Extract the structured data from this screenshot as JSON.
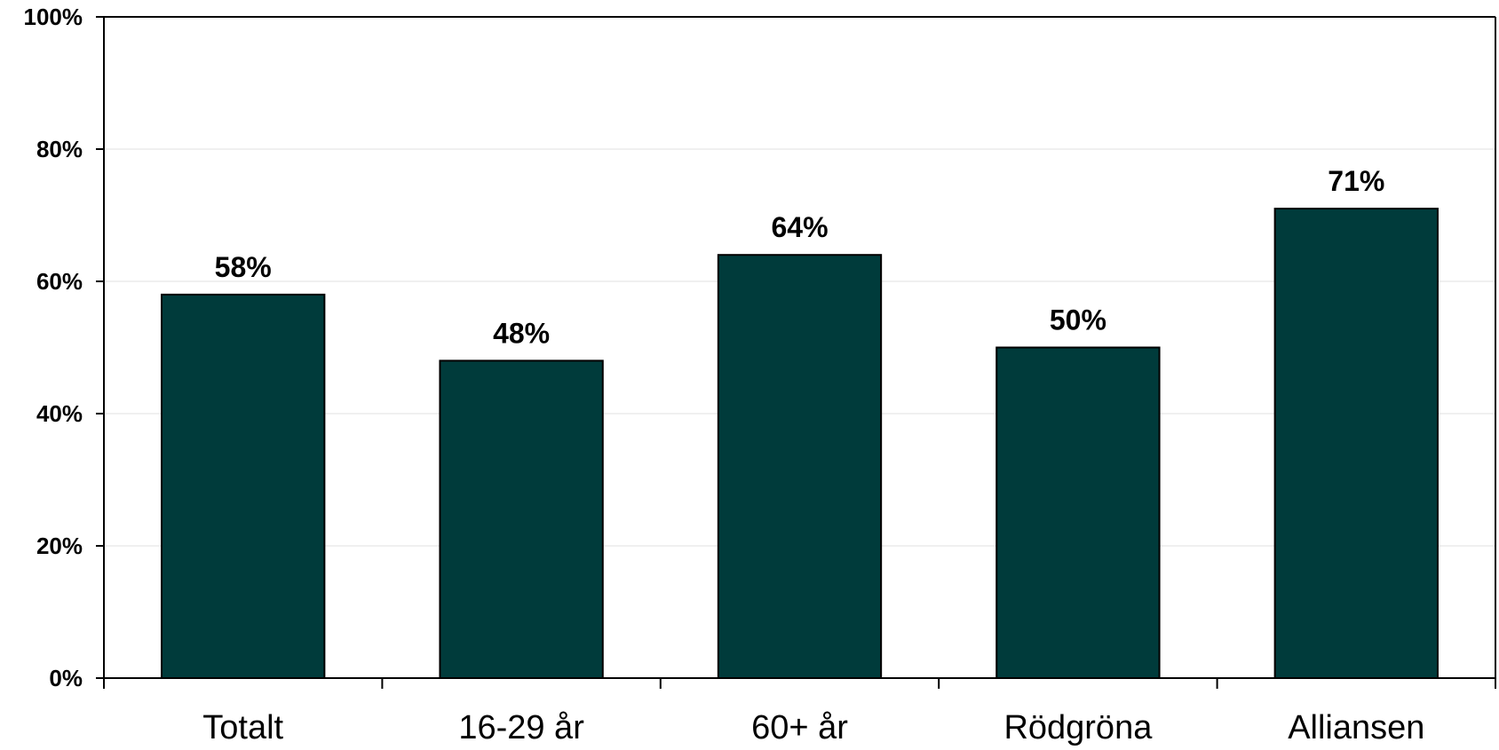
{
  "chart_data": {
    "type": "bar",
    "categories": [
      "Totalt",
      "16-29 år",
      "60+ år",
      "Rödgröna",
      "Alliansen"
    ],
    "values": [
      58,
      48,
      64,
      50,
      71
    ],
    "data_labels": [
      "58%",
      "48%",
      "64%",
      "50%",
      "71%"
    ],
    "title": "",
    "xlabel": "",
    "ylabel": "",
    "ylim": [
      0,
      100
    ],
    "yticks": [
      0,
      20,
      40,
      60,
      80,
      100
    ],
    "ytick_labels": [
      "0%",
      "20%",
      "40%",
      "60%",
      "80%",
      "100%"
    ],
    "grid": true,
    "legend": "none",
    "bar_color": "#003b3b"
  }
}
